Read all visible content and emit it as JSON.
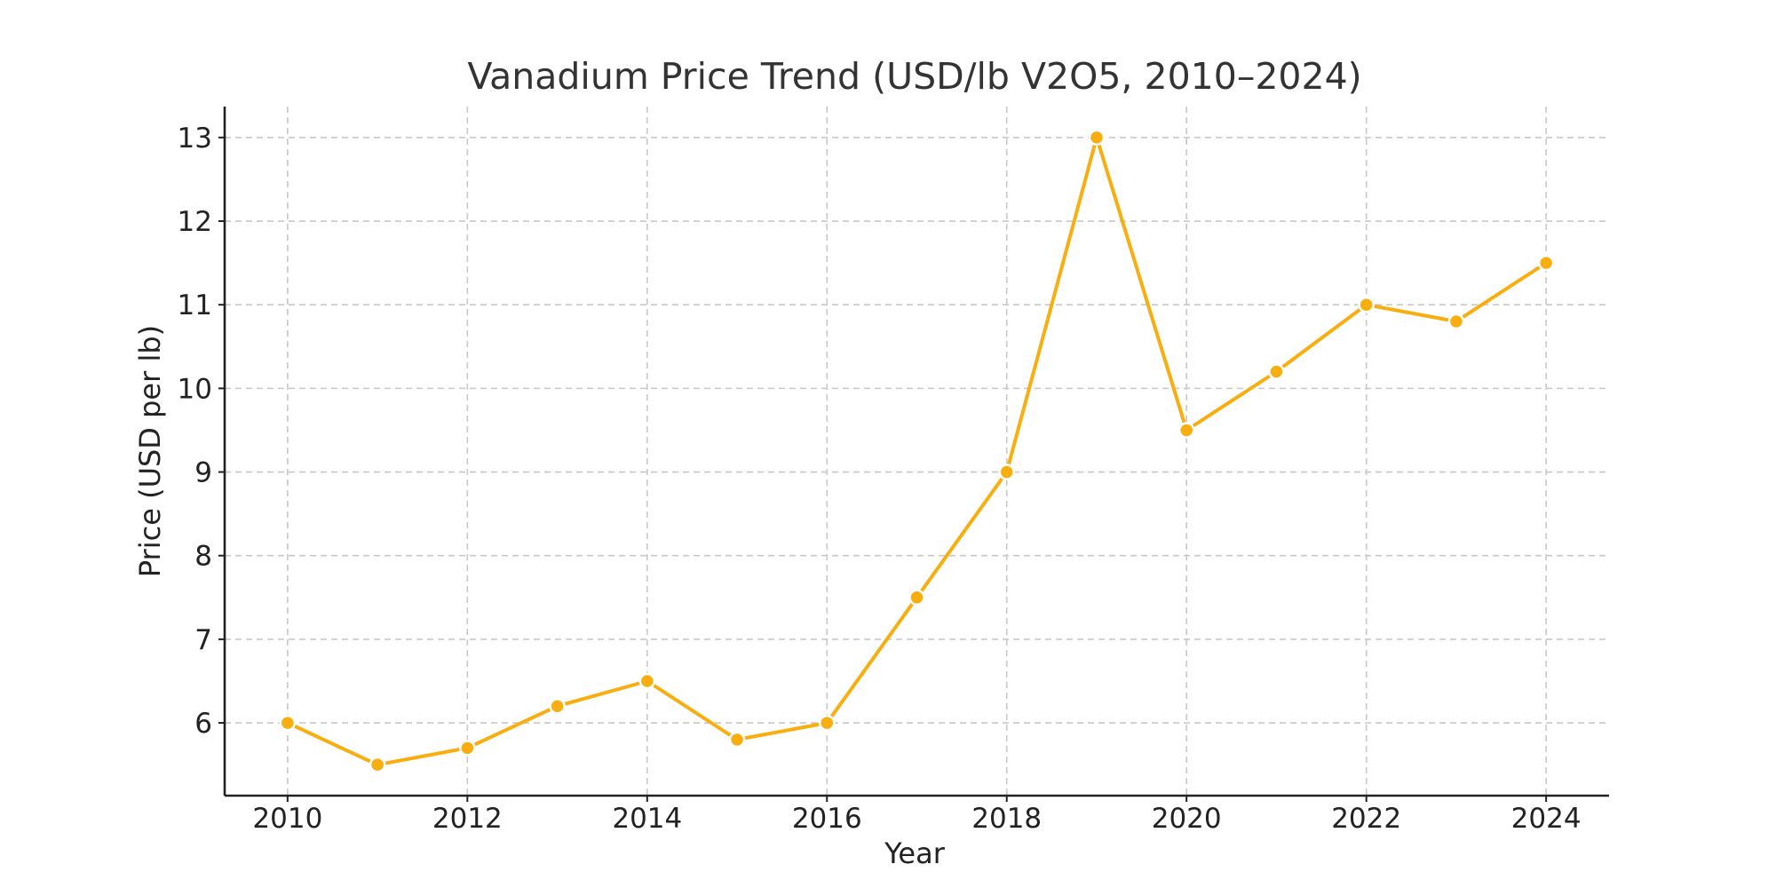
{
  "chart_data": {
    "type": "line",
    "title": "Vanadium Price Trend (USD/lb V2O5, 2010–2024)",
    "xlabel": "Year",
    "ylabel": "Price (USD per lb)",
    "x": [
      2010,
      2011,
      2012,
      2013,
      2014,
      2015,
      2016,
      2017,
      2018,
      2019,
      2020,
      2021,
      2022,
      2023,
      2024
    ],
    "series": [
      {
        "values": [
          6.0,
          5.5,
          5.7,
          6.2,
          6.5,
          5.8,
          6.0,
          7.5,
          9.0,
          13.0,
          9.5,
          10.2,
          11.0,
          10.8,
          11.5
        ]
      }
    ],
    "xticks": [
      2010,
      2012,
      2014,
      2016,
      2018,
      2020,
      2022,
      2024
    ],
    "yticks": [
      6,
      7,
      8,
      9,
      10,
      11,
      12,
      13
    ],
    "xlim": [
      2009.3,
      2024.7
    ],
    "ylim": [
      5.13,
      13.37
    ],
    "grid": true,
    "colors": {
      "series": "#F9AE10",
      "grid": "#C8C8C8",
      "axis": "#222222"
    },
    "marker": "circle"
  }
}
